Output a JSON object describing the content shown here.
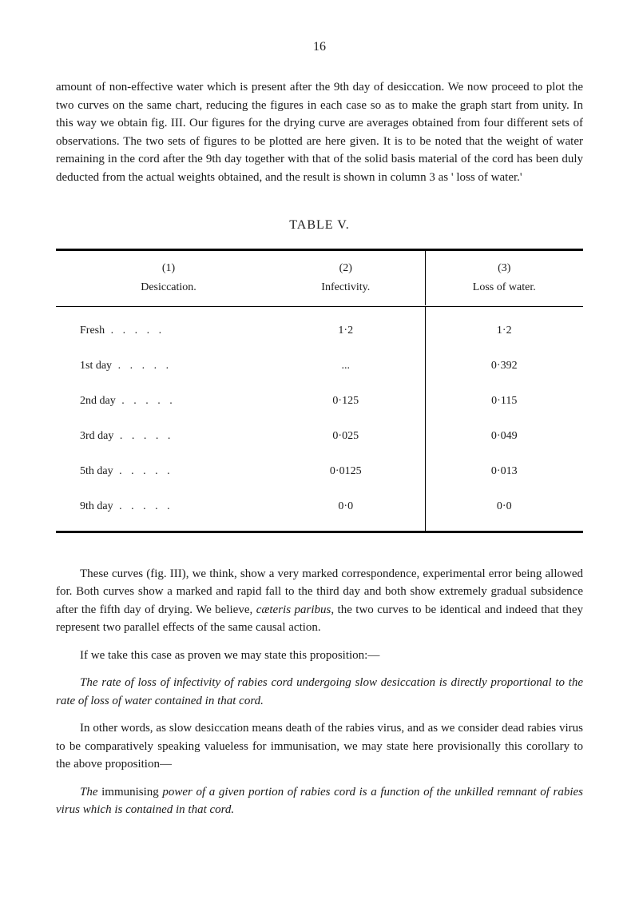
{
  "page_number": "16",
  "para1": "amount of non-effective water which is present after the 9th day of desiccation. We now proceed to plot the two curves on the same chart, reducing the figures in each case so as to make the graph start from unity. In this way we obtain fig. III. Our figures for the drying curve are averages obtained from four different sets of observations. The two sets of figures to be plotted are here given. It is to be noted that the weight of water remaining in the cord after the 9th day together with that of the solid basis material of the cord has been duly deducted from the actual weights obtained, and the result is shown in column 3 as ' loss of water.'",
  "table": {
    "title": "TABLE V.",
    "header_nums": [
      "(1)",
      "(2)",
      "(3)"
    ],
    "header_labels": [
      "Desiccation.",
      "Infectivity.",
      "Loss of water."
    ],
    "rows": [
      {
        "label": "Fresh",
        "col2": "1·2",
        "col3": "1·2"
      },
      {
        "label": "1st day",
        "col2": "...",
        "col3": "0·392"
      },
      {
        "label": "2nd day",
        "col2": "0·125",
        "col3": "0·115"
      },
      {
        "label": "3rd day",
        "col2": "0·025",
        "col3": "0·049"
      },
      {
        "label": "5th day",
        "col2": "0·0125",
        "col3": "0·013"
      },
      {
        "label": "9th day",
        "col2": "0·0",
        "col3": "0·0"
      }
    ]
  },
  "para2_pre": "These curves (fig. III), we think, show a very marked correspondence, experimental error being allowed for. Both curves show a marked and rapid fall to the third day and both show extremely gradual subsidence after the fifth day of drying. We believe, ",
  "para2_italic1": "cæteris paribus",
  "para2_post": ", the two curves to be identical and indeed that they represent two parallel effects of the same causal action.",
  "para3": "If we take this case as proven we may state this proposition:—",
  "para4_italic": "The rate of loss of infectivity of rabies cord undergoing slow desiccation is directly proportional to the rate of loss of water contained in that cord.",
  "para5": "In other words, as slow desiccation means death of the rabies virus, and as we consider dead rabies virus to be comparatively speaking valueless for immunisation, we may state here provisionally this corollary to the above proposition—",
  "para6_pre": "The ",
  "para6_mid1": "immunising ",
  "para6_italic1": "power of a given portion of rabies cord is a function of the unkilled remnant of rabies virus which is contained in that cord."
}
